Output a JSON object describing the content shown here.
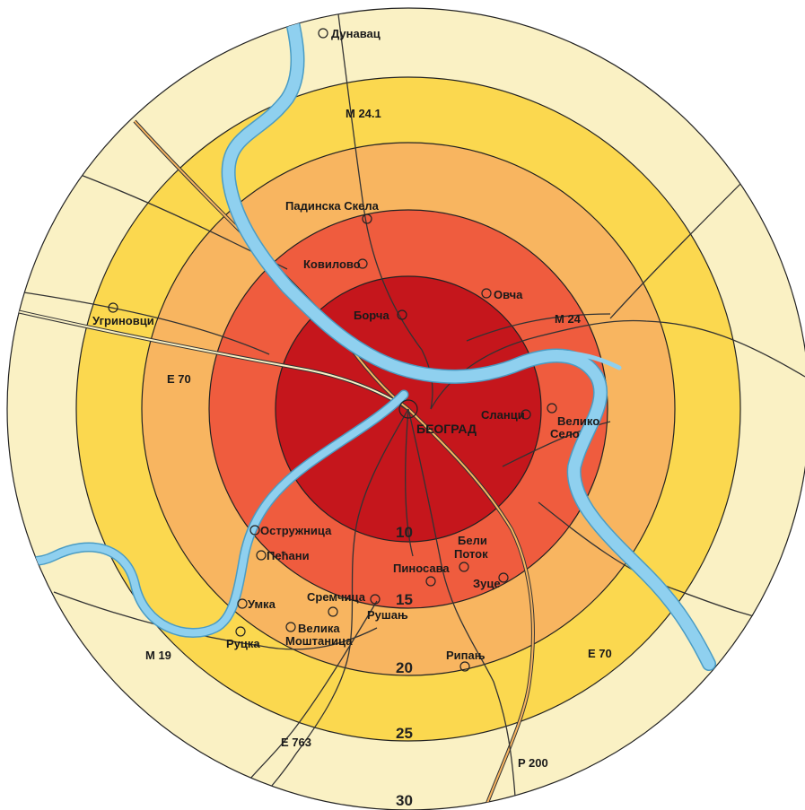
{
  "colors": {
    "ring_30": "#faf1c4",
    "ring_25": "#fbd84f",
    "ring_20": "#f8b560",
    "ring_15": "#ef5c3e",
    "ring_10": "#c5161c",
    "river": "#8fd0ef",
    "road": "#333333"
  },
  "ring_labels": {
    "r10": "10",
    "r15": "15",
    "r20": "20",
    "r25": "25",
    "r30": "30"
  },
  "center": {
    "name": "БЕОГРАД"
  },
  "places": [
    {
      "id": "dunavac",
      "name": "Дунавац"
    },
    {
      "id": "padinska",
      "name": "Падинска Скела"
    },
    {
      "id": "kovilovo",
      "name": "Ковилово"
    },
    {
      "id": "ovca",
      "name": "Овча"
    },
    {
      "id": "borca",
      "name": "Борча"
    },
    {
      "id": "ugrinovci",
      "name": "Угриновци"
    },
    {
      "id": "slanci",
      "name": "Сланци"
    },
    {
      "id": "veliko_selo_1",
      "name": "Велико"
    },
    {
      "id": "veliko_selo_2",
      "name": "Село"
    },
    {
      "id": "ostruznica",
      "name": "Остружница"
    },
    {
      "id": "beli_1",
      "name": "Бели"
    },
    {
      "id": "beli_2",
      "name": "Поток"
    },
    {
      "id": "pinosava",
      "name": "Пиносава"
    },
    {
      "id": "pecani",
      "name": "Пећани"
    },
    {
      "id": "zuce",
      "name": "Зуце"
    },
    {
      "id": "umka",
      "name": "Умка"
    },
    {
      "id": "sremcica",
      "name": "Сремчица"
    },
    {
      "id": "rusanj",
      "name": "Рушањ"
    },
    {
      "id": "rucka",
      "name": "Руцка"
    },
    {
      "id": "velika_1",
      "name": "Велика"
    },
    {
      "id": "velika_2",
      "name": "Моштаница"
    },
    {
      "id": "ripanj",
      "name": "Рипањ"
    }
  ],
  "road_labels": {
    "m241": "M 24.1",
    "m24": "M 24",
    "e70w": "E 70",
    "e70s": "E 70",
    "m19": "M 19",
    "e763": "E 763",
    "p200": "P 200"
  }
}
